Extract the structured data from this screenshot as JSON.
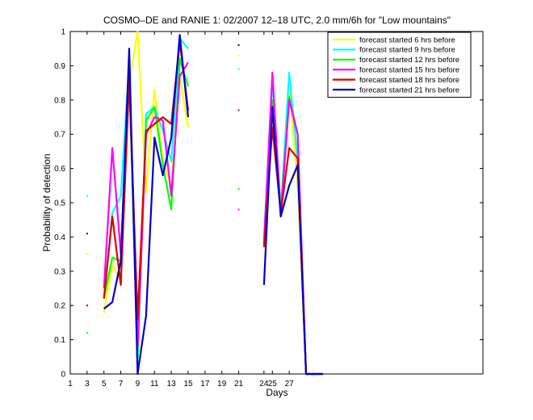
{
  "chart_data": {
    "type": "line",
    "title": "COSMO–DE and RANIE 1: 02/2007 12–18 UTC, 2.0 mm/6h for \"Low mountains\"",
    "xlabel": "Days",
    "ylabel": "Probability of detection",
    "xlim": [
      1,
      50
    ],
    "ylim": [
      0,
      1
    ],
    "xticks": [
      "1",
      "3",
      "5",
      "7",
      "9",
      "11",
      "13",
      "15",
      "17",
      "19",
      "21",
      "24",
      "25",
      "27"
    ],
    "xtick_values": [
      1,
      3,
      5,
      7,
      9,
      11,
      13,
      15,
      17,
      19,
      21,
      24,
      25,
      27
    ],
    "yticks": [
      "0",
      "0.1",
      "0.2",
      "0.3",
      "0.4",
      "0.5",
      "0.6",
      "0.7",
      "0.8",
      "0.9",
      "1"
    ],
    "ytick_values": [
      0,
      0.1,
      0.2,
      0.3,
      0.4,
      0.5,
      0.6,
      0.7,
      0.8,
      0.9,
      1
    ],
    "grid": false,
    "legend_position": "top-right",
    "series": [
      {
        "name": "forecast started 6 hrs before",
        "color": "#ffff00",
        "x": [
          3,
          5,
          6,
          7,
          8,
          9,
          10,
          11,
          12,
          13,
          14,
          15,
          21,
          24,
          25,
          26,
          27,
          28,
          29,
          30,
          31
        ],
        "values": [
          0.35,
          0.18,
          0.32,
          0.27,
          0.85,
          1.0,
          0.53,
          0.83,
          0.62,
          0.55,
          0.87,
          0.72,
          0.93,
          0.37,
          0.74,
          0.48,
          0.84,
          0.55,
          0.0,
          0.0,
          0.0
        ]
      },
      {
        "name": "forecast started 9 hrs before",
        "color": "#00ffff",
        "x": [
          3,
          5,
          6,
          7,
          8,
          9,
          10,
          11,
          12,
          13,
          14,
          15,
          21,
          24,
          25,
          26,
          27,
          28,
          29,
          30,
          31
        ],
        "values": [
          0.52,
          0.22,
          0.47,
          0.52,
          0.91,
          0.02,
          0.76,
          0.78,
          0.71,
          0.62,
          0.98,
          0.95,
          0.89,
          0.4,
          0.86,
          0.48,
          0.88,
          0.62,
          0.0,
          0.0,
          0.0
        ]
      },
      {
        "name": "forecast started 12 hrs before",
        "color": "#00ff00",
        "x": [
          3,
          5,
          6,
          7,
          8,
          9,
          10,
          11,
          12,
          13,
          14,
          15,
          21,
          24,
          25,
          26,
          27,
          28,
          29,
          30,
          31
        ],
        "values": [
          0.12,
          0.22,
          0.34,
          0.33,
          0.87,
          0.05,
          0.74,
          0.78,
          0.61,
          0.48,
          0.92,
          0.84,
          0.54,
          0.38,
          0.8,
          0.47,
          0.81,
          0.7,
          0.0,
          0.0,
          0.0
        ]
      },
      {
        "name": "forecast started 15 hrs before",
        "color": "#ff00ff",
        "x": [
          3,
          5,
          6,
          7,
          8,
          9,
          10,
          11,
          12,
          13,
          14,
          15,
          21,
          24,
          25,
          26,
          27,
          28,
          29,
          30,
          31
        ],
        "values": [
          0.2,
          0.25,
          0.66,
          0.35,
          0.88,
          0.08,
          0.7,
          0.75,
          0.74,
          0.52,
          0.87,
          0.91,
          0.48,
          0.38,
          0.88,
          0.46,
          0.8,
          0.7,
          0.0,
          0.0,
          0.0
        ]
      },
      {
        "name": "forecast started 18 hrs before",
        "color": "#dd0000",
        "x": [
          3,
          5,
          6,
          7,
          8,
          9,
          10,
          11,
          12,
          13,
          14,
          15,
          21,
          24,
          25,
          26,
          27,
          28,
          29,
          30,
          31
        ],
        "values": [
          0.2,
          0.22,
          0.46,
          0.26,
          0.86,
          0.16,
          0.71,
          0.73,
          0.75,
          0.73,
          0.97,
          0.77,
          0.77,
          0.37,
          0.72,
          0.47,
          0.66,
          0.63,
          0.0,
          0.0,
          0.0
        ]
      },
      {
        "name": "forecast started 21 hrs before",
        "color": "#0000cc",
        "x": [
          3,
          5,
          6,
          7,
          8,
          9,
          10,
          11,
          12,
          13,
          14,
          15,
          21,
          24,
          25,
          26,
          27,
          28,
          29,
          30,
          31
        ],
        "values": [
          0.41,
          0.19,
          0.21,
          0.33,
          0.95,
          0.0,
          0.17,
          0.69,
          0.58,
          0.69,
          0.99,
          0.75,
          0.96,
          0.26,
          0.78,
          0.46,
          0.55,
          0.61,
          0.0,
          0.0,
          0.0
        ]
      }
    ]
  }
}
